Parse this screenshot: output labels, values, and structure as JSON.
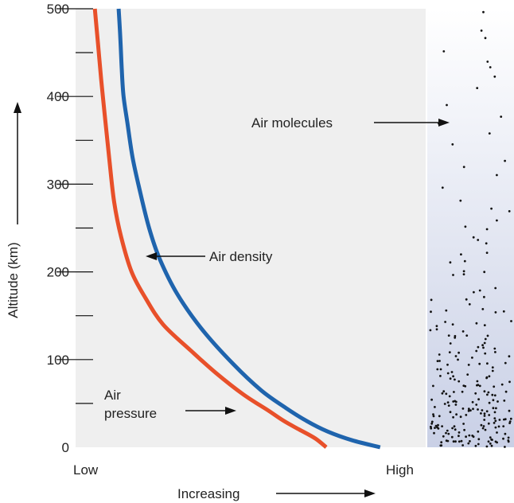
{
  "chart_data": {
    "type": "line",
    "ylabel": "Altitude (km)",
    "ylim": [
      0,
      500
    ],
    "yticks": [
      0,
      100,
      200,
      300,
      400,
      500
    ],
    "x_start_label": "Low",
    "x_end_label": "High",
    "x_direction_label": "Increasing",
    "xlim": [
      0,
      100
    ],
    "series": [
      {
        "name": "Air pressure",
        "label_line1": "Air",
        "label_line2": "pressure",
        "color": "#e8502a",
        "x": [
          71.6,
          68.5,
          64,
          59.5,
          55,
          48,
          40,
          33,
          25,
          20,
          16,
          13,
          11,
          9.6,
          8.3,
          7.3,
          6.4,
          5.5
        ],
        "y": [
          0,
          10,
          20,
          30,
          42,
          60,
          85,
          110,
          140,
          170,
          200,
          240,
          280,
          330,
          380,
          420,
          460,
          500
        ]
      },
      {
        "name": "Air density",
        "color": "#1f64ad",
        "x": [
          87,
          79,
          72,
          66,
          60,
          53,
          45,
          36,
          29,
          24,
          21,
          18.5,
          16.3,
          14.8,
          13.7,
          13.2,
          12.8,
          12.3
        ],
        "y": [
          0,
          8,
          18,
          30,
          45,
          65,
          95,
          135,
          175,
          215,
          250,
          290,
          330,
          370,
          400,
          430,
          465,
          500
        ]
      }
    ],
    "annotations": {
      "air_molecules": "Air molecules"
    },
    "colors": {
      "plot_background": "#efefef",
      "panel_top": "#ffffff",
      "panel_bottom": "#c9d0e6",
      "molecule": "#111111"
    }
  }
}
